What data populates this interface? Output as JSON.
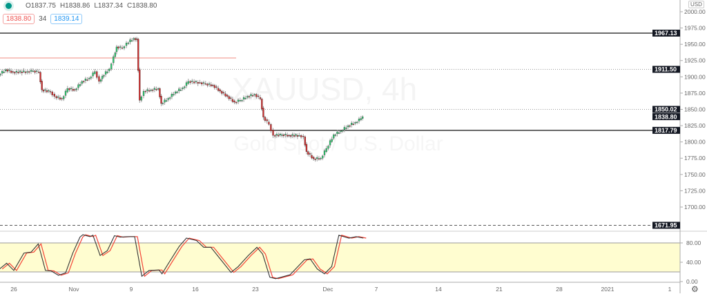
{
  "legend": {
    "open": "O1837.75",
    "high": "H1838.86",
    "low": "L1837.34",
    "close": "C1838.80"
  },
  "quote": {
    "sell": "1838.80",
    "spread": "34",
    "buy": "1839.14"
  },
  "currency": "USD",
  "watermark": {
    "symbol": "XAUUSD, 4h",
    "description": "Gold Spot / U.S. Dollar"
  },
  "colors": {
    "up": "#26a69a",
    "up_body": "#2ecc71",
    "down": "#ef5350",
    "down_body": "#d32f2f",
    "stoch_k": "#333333",
    "stoch_d": "#f44336",
    "band": "#fffdd0",
    "red_line": "#f28b82"
  },
  "price_axis": {
    "ticks": [
      "2000.00",
      "1975.00",
      "1950.00",
      "1925.00",
      "1900.00",
      "1875.00",
      "1850.00",
      "1825.00",
      "1800.00",
      "1775.00",
      "1750.00",
      "1725.00",
      "1700.00"
    ]
  },
  "osc_axis": {
    "ticks": [
      "80.00",
      "40.00",
      "0.00"
    ]
  },
  "time_axis": {
    "ticks": [
      "26",
      "Nov",
      "9",
      "16",
      "23",
      "Dec",
      "7",
      "14",
      "21",
      "28",
      "2021",
      "1"
    ]
  },
  "levels": [
    {
      "price": 1967.13,
      "label": "1967.13",
      "style": "solid"
    },
    {
      "price": 1911.5,
      "label": "1911.50",
      "style": "dotted"
    },
    {
      "price": 1850.02,
      "label": "1850.02",
      "style": "dotted"
    },
    {
      "price": 1838.8,
      "label": "1838.80",
      "style": "none"
    },
    {
      "price": 1817.79,
      "label": "1817.79",
      "style": "solid"
    },
    {
      "price": 1671.95,
      "label": "1671.95",
      "style": "dashed"
    }
  ],
  "red_line_price": 1929,
  "chart_data": {
    "type": "candlestick",
    "title": "XAUUSD, 4h",
    "ylim": [
      1660,
      2010
    ],
    "price_closes": [
      [
        "2020-10-24T08:00",
        1903.5
      ],
      [
        "2020-10-25T04:00",
        1911
      ],
      [
        "2020-10-26T00:00",
        1907
      ],
      [
        "2020-10-27T16:00",
        1908
      ],
      [
        "2020-10-28T08:00",
        1909
      ],
      [
        "2020-10-29T00:00",
        1907
      ],
      [
        "2020-10-29T08:00",
        1880
      ],
      [
        "2020-10-30T08:00",
        1877
      ],
      [
        "2020-10-30T20:00",
        1870
      ],
      [
        "2020-10-31T16:00",
        1866
      ],
      [
        "2020-11-01T08:00",
        1882
      ],
      [
        "2020-11-02T04:00",
        1880
      ],
      [
        "2020-11-03T00:00",
        1893
      ],
      [
        "2020-11-03T20:00",
        1898
      ],
      [
        "2020-11-04T12:00",
        1908
      ],
      [
        "2020-11-05T00:00",
        1893
      ],
      [
        "2020-11-05T08:00",
        1901
      ],
      [
        "2020-11-06T04:00",
        1912
      ],
      [
        "2020-11-06T16:00",
        1931
      ],
      [
        "2020-11-07T00:00",
        1946
      ],
      [
        "2020-11-07T16:00",
        1944
      ],
      [
        "2020-11-08T04:00",
        1952
      ],
      [
        "2020-11-09T00:00",
        1959
      ],
      [
        "2020-11-09T08:00",
        1958
      ],
      [
        "2020-11-09T16:00",
        1864
      ],
      [
        "2020-11-10T04:00",
        1878
      ],
      [
        "2020-11-11T00:00",
        1880
      ],
      [
        "2020-11-11T20:00",
        1882
      ],
      [
        "2020-11-12T04:00",
        1859
      ],
      [
        "2020-11-13T00:00",
        1867
      ],
      [
        "2020-11-13T20:00",
        1877
      ],
      [
        "2020-11-14T16:00",
        1883
      ],
      [
        "2020-11-15T08:00",
        1893
      ],
      [
        "2020-11-16T16:00",
        1891
      ],
      [
        "2020-11-17T08:00",
        1889
      ],
      [
        "2020-11-18T04:00",
        1887
      ],
      [
        "2020-11-19T00:00",
        1878
      ],
      [
        "2020-11-19T20:00",
        1870
      ],
      [
        "2020-11-20T16:00",
        1861
      ],
      [
        "2020-11-21T08:00",
        1864
      ],
      [
        "2020-11-22T04:00",
        1870
      ],
      [
        "2020-11-23T00:00",
        1873
      ],
      [
        "2020-11-23T16:00",
        1866
      ],
      [
        "2020-11-24T00:00",
        1838
      ],
      [
        "2020-11-24T16:00",
        1827
      ],
      [
        "2020-11-25T04:00",
        1810
      ],
      [
        "2020-11-26T04:00",
        1811
      ],
      [
        "2020-11-27T00:00",
        1810
      ],
      [
        "2020-11-28T04:00",
        1810
      ],
      [
        "2020-11-28T16:00",
        1808
      ],
      [
        "2020-11-29T00:00",
        1785
      ],
      [
        "2020-11-29T20:00",
        1774
      ],
      [
        "2020-11-30T16:00",
        1775
      ],
      [
        "2020-12-01T08:00",
        1790
      ],
      [
        "2020-12-02T04:00",
        1811
      ],
      [
        "2020-12-03T00:00",
        1817
      ],
      [
        "2020-12-03T20:00",
        1825
      ],
      [
        "2020-12-04T16:00",
        1830
      ],
      [
        "2020-12-05T08:00",
        1836
      ],
      [
        "2020-12-05T12:00",
        1838.8
      ]
    ],
    "stochastic_k": [
      [
        "2020-10-24T08:00",
        26
      ],
      [
        "2020-10-25T04:00",
        38
      ],
      [
        "2020-10-26T00:00",
        23
      ],
      [
        "2020-10-27T04:00",
        59
      ],
      [
        "2020-10-28T00:00",
        61
      ],
      [
        "2020-10-28T20:00",
        78
      ],
      [
        "2020-10-29T16:00",
        23
      ],
      [
        "2020-10-30T08:00",
        22
      ],
      [
        "2020-10-31T04:00",
        13
      ],
      [
        "2020-11-01T00:00",
        18
      ],
      [
        "2020-11-01T20:00",
        59
      ],
      [
        "2020-11-02T16:00",
        92
      ],
      [
        "2020-11-03T00:00",
        97
      ],
      [
        "2020-11-03T20:00",
        93
      ],
      [
        "2020-11-04T04:00",
        96
      ],
      [
        "2020-11-05T00:00",
        54
      ],
      [
        "2020-11-05T20:00",
        64
      ],
      [
        "2020-11-06T16:00",
        95
      ],
      [
        "2020-11-07T08:00",
        92
      ],
      [
        "2020-11-08T04:00",
        93
      ],
      [
        "2020-11-09T00:00",
        93
      ],
      [
        "2020-11-09T20:00",
        11
      ],
      [
        "2020-11-10T16:00",
        23
      ],
      [
        "2020-11-11T20:00",
        24
      ],
      [
        "2020-11-12T04:00",
        16
      ],
      [
        "2020-11-13T00:00",
        40
      ],
      [
        "2020-11-14T04:00",
        73
      ],
      [
        "2020-11-15T00:00",
        90
      ],
      [
        "2020-11-16T04:00",
        85
      ],
      [
        "2020-11-17T00:00",
        71
      ],
      [
        "2020-11-17T20:00",
        71
      ],
      [
        "2020-11-19T00:00",
        45
      ],
      [
        "2020-11-20T04:00",
        19
      ],
      [
        "2020-11-21T00:00",
        31
      ],
      [
        "2020-11-22T04:00",
        54
      ],
      [
        "2020-11-23T04:00",
        71
      ],
      [
        "2020-11-23T20:00",
        57
      ],
      [
        "2020-11-24T16:00",
        9
      ],
      [
        "2020-11-25T08:00",
        6
      ],
      [
        "2020-11-27T00:00",
        14
      ],
      [
        "2020-11-28T16:00",
        45
      ],
      [
        "2020-11-29T08:00",
        47
      ],
      [
        "2020-11-30T04:00",
        26
      ],
      [
        "2020-12-01T00:00",
        16
      ],
      [
        "2020-12-01T20:00",
        31
      ],
      [
        "2020-12-02T16:00",
        96
      ],
      [
        "2020-12-03T20:00",
        90
      ],
      [
        "2020-12-04T16:00",
        93
      ],
      [
        "2020-12-05T12:00",
        90
      ]
    ],
    "stochastic_band": [
      20,
      80
    ],
    "osc_ylim": [
      0,
      100
    ]
  }
}
